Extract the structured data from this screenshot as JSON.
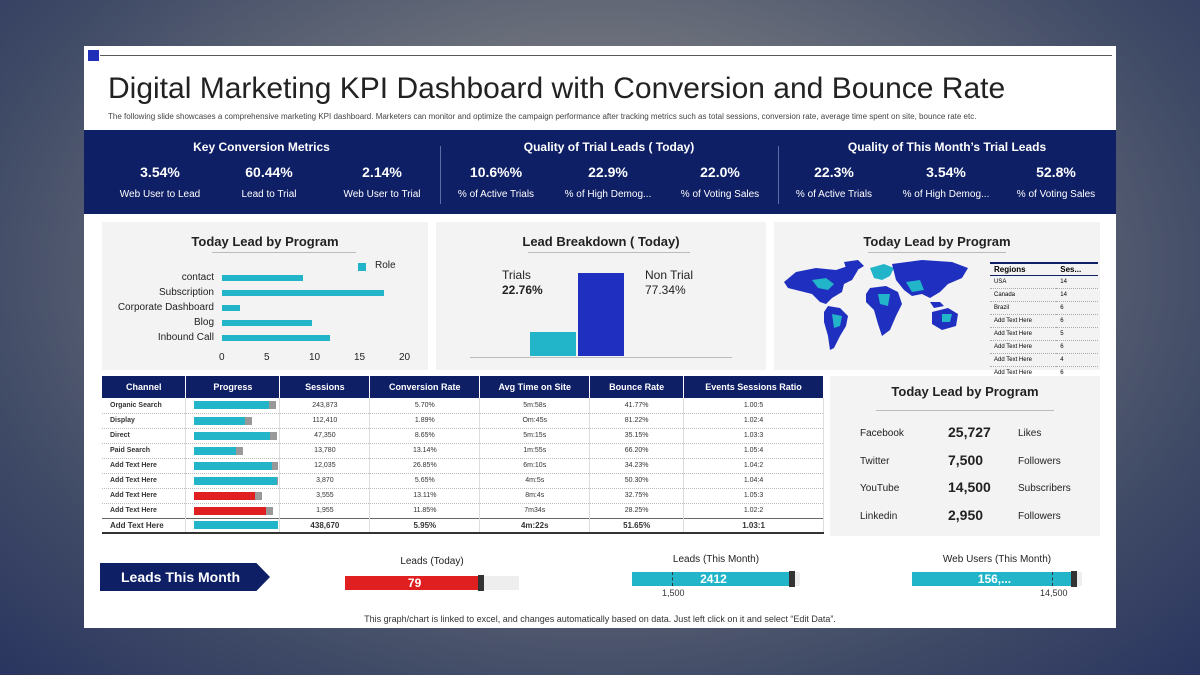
{
  "title": "Digital Marketing KPI Dashboard with Conversion and Bounce Rate",
  "subtitle": "The following slide showcases a comprehensive marketing KPI dashboard. Marketers can monitor and optimize the campaign performance after tracking metrics such as total sessions, conversion rate, average time spent on site, bounce rate etc.",
  "kpi_groups": [
    {
      "title": "Key Conversion Metrics",
      "items": [
        {
          "value": "3.54%",
          "label": "Web User to Lead"
        },
        {
          "value": "60.44%",
          "label": "Lead to Trial"
        },
        {
          "value": "2.14%",
          "label": "Web User to Trial"
        }
      ]
    },
    {
      "title": "Quality of Trial Leads ( Today)",
      "items": [
        {
          "value": "10.6%%",
          "label": "% of Active Trials"
        },
        {
          "value": "22.9%",
          "label": "% of High Demog..."
        },
        {
          "value": "22.0%",
          "label": "% of Voting Sales"
        }
      ]
    },
    {
      "title": "Quality of This Month’s Trial Leads",
      "items": [
        {
          "value": "22.3%",
          "label": "% of Active Trials"
        },
        {
          "value": "3.54%",
          "label": "% of High Demog..."
        },
        {
          "value": "52.8%",
          "label": "% of Voting Sales"
        }
      ]
    }
  ],
  "panel1": {
    "title": "Today Lead by Program",
    "legend": "Role",
    "color": "#22b4c9"
  },
  "chart_data": [
    {
      "type": "bar",
      "orientation": "horizontal",
      "title": "Today Lead by Program",
      "categories": [
        "contact",
        "Subscription",
        "Corporate Dashboard",
        "Blog",
        "Inbound Call"
      ],
      "series": [
        {
          "name": "Role",
          "values": [
            9,
            18,
            2,
            10,
            12
          ]
        }
      ],
      "xlim": [
        0,
        20
      ],
      "xticks": [
        "0",
        "5",
        "10",
        "15",
        "20"
      ],
      "legend": "top-right"
    },
    {
      "type": "bar",
      "title": "Lead Breakdown ( Today)",
      "categories": [
        "Trials",
        "Non Trial"
      ],
      "values": [
        22.76,
        77.34
      ],
      "labels": [
        "22.76%",
        "77.34%"
      ],
      "colors": [
        "#22b4c9",
        "#1f2fc0"
      ]
    }
  ],
  "panel2": {
    "title": "Lead Breakdown ( Today)",
    "trials_label": "Trials",
    "trials_value": "22.76%",
    "nontrial_label": "Non Trial",
    "nontrial_value": "77.34%"
  },
  "panel3": {
    "title": "Today Lead by Program",
    "regions_header": [
      "Regions",
      "Ses..."
    ],
    "regions": [
      [
        "USA",
        "14"
      ],
      [
        "Canada",
        "14"
      ],
      [
        "Brazil",
        "6"
      ],
      [
        "Add Text Here",
        "6"
      ],
      [
        "Add Text Here",
        "5"
      ],
      [
        "Add Text Here",
        "6"
      ],
      [
        "Add Text Here",
        "4"
      ],
      [
        "Add Text Here",
        "6"
      ]
    ]
  },
  "channel_table": {
    "headers": [
      "Channel",
      "Progress",
      "Sessions",
      "Conversion Rate",
      "Avg Time on Site",
      "Bounce Rate",
      "Events Sessions Ratio"
    ],
    "rows": [
      {
        "name": "Organic Search",
        "progress": 0.89,
        "color": "#22b4c9",
        "sessions": "243,873",
        "conv": "5.70%",
        "time": "5m:58s",
        "bounce": "41.77%",
        "ratio": "1.00:5"
      },
      {
        "name": "Display",
        "progress": 0.6,
        "color": "#22b4c9",
        "sessions": "112,410",
        "conv": "1.89%",
        "time": "Om:45s",
        "bounce": "81.22%",
        "ratio": "1.02:4"
      },
      {
        "name": "Direct",
        "progress": 0.9,
        "color": "#22b4c9",
        "sessions": "47,350",
        "conv": "8.65%",
        "time": "5m:15s",
        "bounce": "35.15%",
        "ratio": "1.03:3"
      },
      {
        "name": "Paid Search",
        "progress": 0.5,
        "color": "#22b4c9",
        "sessions": "13,780",
        "conv": "13.14%",
        "time": "1m:55s",
        "bounce": "66.20%",
        "ratio": "1.05:4"
      },
      {
        "name": "Add Text Here",
        "progress": 0.92,
        "color": "#22b4c9",
        "sessions": "12,035",
        "conv": "26.85%",
        "time": "6m:10s",
        "bounce": "34.23%",
        "ratio": "1.04:2"
      },
      {
        "name": "Add Text Here",
        "progress": 0.98,
        "color": "#22b4c9",
        "sessions": "3,870",
        "conv": "5.65%",
        "time": "4m:5s",
        "bounce": "50.30%",
        "ratio": "1.04:4"
      },
      {
        "name": "Add Text Here",
        "progress": 0.72,
        "color": "#e02020",
        "sessions": "3,555",
        "conv": "13.11%",
        "time": "8m:4s",
        "bounce": "32.75%",
        "ratio": "1.05:3"
      },
      {
        "name": "Add Text Here",
        "progress": 0.85,
        "color": "#e02020",
        "sessions": "1,955",
        "conv": "11.85%",
        "time": "7m34s",
        "bounce": "28.25%",
        "ratio": "1.02:2"
      }
    ],
    "total": {
      "name": "Add Text Here",
      "progress": 0.99,
      "color": "#22b4c9",
      "sessions": "438,670",
      "conv": "5.95%",
      "time": "4m:22s",
      "bounce": "51.65%",
      "ratio": "1.03:1"
    }
  },
  "social": {
    "title": "Today Lead by Program",
    "rows": [
      {
        "network": "Facebook",
        "value": "25,727",
        "unit": "Likes"
      },
      {
        "network": "Twitter",
        "value": "7,500",
        "unit": "Followers"
      },
      {
        "network": "YouTube",
        "value": "14,500",
        "unit": "Subscribers"
      },
      {
        "network": "Linkedin",
        "value": "2,950",
        "unit": "Followers"
      }
    ]
  },
  "leads_month": {
    "tag": "Leads This Month",
    "gauges": [
      {
        "title": "Leads (Today)",
        "value": "79",
        "fill_fraction": 0.8,
        "color": "#e02020",
        "tick": ""
      },
      {
        "title": "Leads (This Month)",
        "value": "2412",
        "fill_fraction": 0.97,
        "color": "#22b4c9",
        "tick": "1,500"
      },
      {
        "title": "Web Users (This Month)",
        "value": "156,...",
        "fill_fraction": 0.97,
        "color": "#22b4c9",
        "tick": "14,500"
      }
    ]
  },
  "footer": "This graph/chart is linked to excel, and changes automatically based on data. Just left click on it and select “Edit Data”."
}
